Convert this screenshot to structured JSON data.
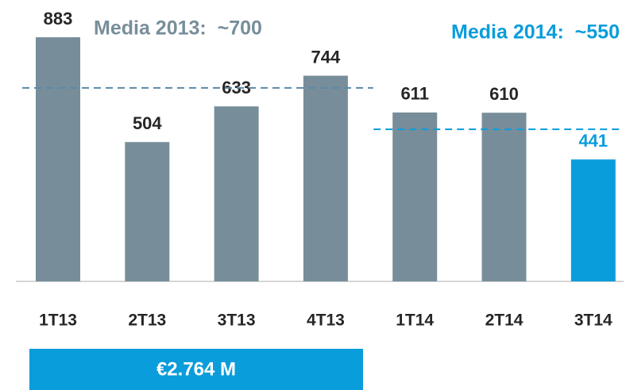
{
  "chart_data": {
    "type": "bar",
    "categories": [
      "1T13",
      "2T13",
      "3T13",
      "4T13",
      "1T14",
      "2T14",
      "3T14"
    ],
    "values": [
      883,
      504,
      633,
      744,
      611,
      610,
      441
    ],
    "colors": [
      "#778e9a",
      "#778e9a",
      "#778e9a",
      "#778e9a",
      "#778e9a",
      "#778e9a",
      "#0a9ddb"
    ],
    "value_label_colors": [
      "#262626",
      "#262626",
      "#262626",
      "#262626",
      "#262626",
      "#262626",
      "#0a9ddb"
    ],
    "reference_lines": [
      {
        "label": "Media 2013:  ~700",
        "value": 700,
        "color": "#778e9a",
        "line_color": "#5b89a6",
        "from": 0,
        "to": 3
      },
      {
        "label": "Media 2014:  ~550",
        "value": 550,
        "color": "#0a9ddb",
        "line_color": "#0a9ddb",
        "from": 4,
        "to": 6
      }
    ],
    "total_box": "€2.764 M"
  }
}
